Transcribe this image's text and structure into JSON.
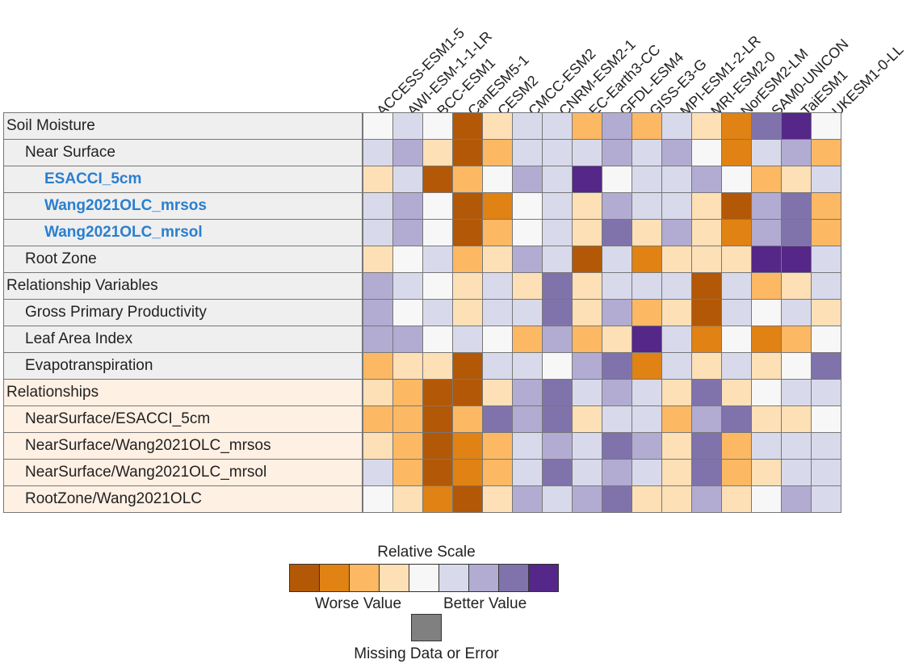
{
  "chart_data": {
    "type": "heatmap",
    "title": "",
    "columns": [
      "ACCESS-ESM1-5",
      "AWI-ESM-1-1-LR",
      "BCC-ESM1",
      "CanESM5-1",
      "CESM2",
      "CMCC-ESM2",
      "CNRM-ESM2-1",
      "EC-Earth3-CC",
      "GFDL-ESM4",
      "GISS-E3-G",
      "MPI-ESM1-2-LR",
      "MRI-ESM2-0",
      "NorESM2-LM",
      "SAM0-UNICON",
      "TaiESM1",
      "UKESM1-0-LL"
    ],
    "rows": [
      {
        "label": "Soil Moisture",
        "level": "section",
        "group": "grey",
        "values": [
          0,
          1,
          0,
          -4,
          -1,
          1,
          1,
          -2,
          2,
          -2,
          1,
          -1,
          -3,
          3,
          4,
          0
        ]
      },
      {
        "label": "Near Surface",
        "level": "sub",
        "group": "grey",
        "values": [
          1,
          2,
          -1,
          -4,
          -2,
          1,
          1,
          1,
          2,
          1,
          2,
          0,
          -3,
          1,
          2,
          -2
        ]
      },
      {
        "label": "ESACCI_5cm",
        "level": "source",
        "group": "grey",
        "values": [
          -1,
          1,
          -4,
          -2,
          0,
          2,
          1,
          4,
          0,
          1,
          1,
          2,
          0,
          -2,
          -1,
          1
        ]
      },
      {
        "label": "Wang2021OLC_mrsos",
        "level": "source",
        "group": "grey",
        "values": [
          1,
          2,
          0,
          -4,
          -3,
          0,
          1,
          -1,
          2,
          1,
          1,
          -1,
          -4,
          2,
          3,
          -2
        ]
      },
      {
        "label": "Wang2021OLC_mrsol",
        "level": "source",
        "group": "grey",
        "values": [
          1,
          2,
          0,
          -4,
          -2,
          0,
          1,
          -1,
          3,
          -1,
          2,
          -1,
          -3,
          2,
          3,
          -2
        ]
      },
      {
        "label": "Root Zone",
        "level": "sub",
        "group": "grey",
        "values": [
          -1,
          0,
          1,
          -2,
          -1,
          2,
          1,
          -4,
          1,
          -3,
          -1,
          -1,
          -1,
          4,
          4,
          1
        ]
      },
      {
        "label": "Relationship Variables",
        "level": "section",
        "group": "grey",
        "values": [
          2,
          1,
          0,
          -1,
          1,
          -1,
          3,
          -1,
          1,
          1,
          1,
          -4,
          1,
          -2,
          -1,
          1
        ]
      },
      {
        "label": "Gross Primary Productivity",
        "level": "sub",
        "group": "grey",
        "values": [
          2,
          0,
          1,
          -1,
          1,
          1,
          3,
          -1,
          2,
          -2,
          -1,
          -4,
          1,
          0,
          1,
          -1
        ]
      },
      {
        "label": "Leaf Area Index",
        "level": "sub",
        "group": "grey",
        "values": [
          2,
          2,
          0,
          1,
          0,
          -2,
          2,
          -2,
          -1,
          4,
          1,
          -3,
          0,
          -3,
          -2,
          0
        ]
      },
      {
        "label": "Evapotranspiration",
        "level": "sub",
        "group": "grey",
        "values": [
          -2,
          -1,
          -1,
          -4,
          1,
          1,
          0,
          2,
          3,
          -3,
          1,
          -1,
          1,
          -1,
          0,
          3
        ]
      },
      {
        "label": "Relationships",
        "level": "section",
        "group": "peach",
        "values": [
          -1,
          -2,
          -4,
          -4,
          -1,
          2,
          3,
          1,
          2,
          1,
          -1,
          3,
          -1,
          0,
          1,
          1
        ]
      },
      {
        "label": "NearSurface/ESACCI_5cm",
        "level": "sub",
        "group": "peach",
        "values": [
          -2,
          -2,
          -4,
          -2,
          3,
          2,
          3,
          -1,
          1,
          1,
          -2,
          2,
          3,
          -1,
          -1,
          0
        ]
      },
      {
        "label": "NearSurface/Wang2021OLC_mrsos",
        "level": "sub",
        "group": "peach",
        "values": [
          -1,
          -2,
          -4,
          -3,
          -2,
          1,
          2,
          1,
          3,
          2,
          -1,
          3,
          -2,
          1,
          1,
          1
        ]
      },
      {
        "label": "NearSurface/Wang2021OLC_mrsol",
        "level": "sub",
        "group": "peach",
        "values": [
          1,
          -2,
          -4,
          -3,
          -2,
          1,
          3,
          1,
          2,
          1,
          -1,
          3,
          -2,
          -1,
          1,
          1
        ]
      },
      {
        "label": "RootZone/Wang2021OLC",
        "level": "sub",
        "group": "peach",
        "values": [
          0,
          -1,
          -3,
          -4,
          -1,
          2,
          1,
          2,
          3,
          -1,
          -1,
          2,
          -1,
          0,
          2,
          1
        ]
      }
    ],
    "scale": {
      "title": "Relative Scale",
      "min_label": "Worse Value",
      "max_label": "Better Value",
      "levels": [
        -4,
        -3,
        -2,
        -1,
        0,
        1,
        2,
        3,
        4
      ],
      "colors": [
        "#b35806",
        "#e08214",
        "#fdb863",
        "#fee0b6",
        "#f7f7f7",
        "#d8daeb",
        "#b2abd2",
        "#8073ac",
        "#542788"
      ],
      "missing_color": "#808080",
      "missing_label": "Missing Data or Error"
    }
  }
}
